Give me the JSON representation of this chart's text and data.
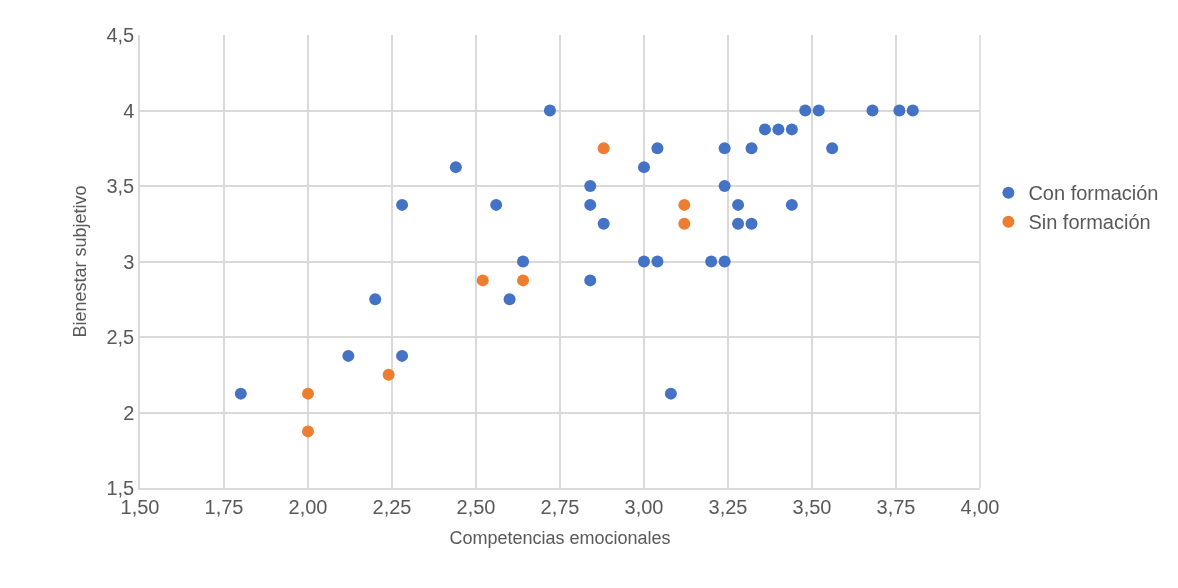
{
  "chart_data": {
    "type": "scatter",
    "xlabel": "Competencias emocionales",
    "ylabel": "Bienestar subjetivo",
    "series": [
      {
        "name": "Con formación",
        "color": "#4472c4",
        "x": [
          1.8,
          2.12,
          2.2,
          2.28,
          2.28,
          2.44,
          2.56,
          2.6,
          2.64,
          2.72,
          2.84,
          2.84,
          2.84,
          2.88,
          3.0,
          3.0,
          3.04,
          3.04,
          3.08,
          3.2,
          3.24,
          3.24,
          3.24,
          3.28,
          3.28,
          3.32,
          3.32,
          3.36,
          3.4,
          3.44,
          3.44,
          3.48,
          3.52,
          3.56,
          3.68,
          3.76,
          3.8
        ],
        "values": [
          2.125,
          2.375,
          2.75,
          2.375,
          3.375,
          3.625,
          3.375,
          2.75,
          3.0,
          4.0,
          2.875,
          3.375,
          3.5,
          3.25,
          3.0,
          3.625,
          3.0,
          3.75,
          2.125,
          3.0,
          3.0,
          3.5,
          3.75,
          3.375,
          3.25,
          3.25,
          3.75,
          3.875,
          3.875,
          3.875,
          3.375,
          4.0,
          4.0,
          3.75,
          4.0,
          4.0,
          4.0
        ]
      },
      {
        "name": "Sin formación",
        "color": "#ed7d31",
        "x": [
          2.0,
          2.0,
          2.24,
          2.52,
          2.64,
          2.88,
          3.12,
          3.12
        ],
        "values": [
          1.875,
          2.125,
          2.25,
          2.875,
          2.875,
          3.75,
          3.375,
          3.25
        ]
      }
    ],
    "xlim": [
      1.5,
      4.0
    ],
    "xticks": [
      {
        "value": 1.5,
        "label": "1,50"
      },
      {
        "value": 1.75,
        "label": "1,75"
      },
      {
        "value": 2.0,
        "label": "2,00"
      },
      {
        "value": 2.25,
        "label": "2,25"
      },
      {
        "value": 2.5,
        "label": "2,50"
      },
      {
        "value": 2.75,
        "label": "2,75"
      },
      {
        "value": 3.0,
        "label": "3,00"
      },
      {
        "value": 3.25,
        "label": "3,25"
      },
      {
        "value": 3.5,
        "label": "3,50"
      },
      {
        "value": 3.75,
        "label": "3,75"
      },
      {
        "value": 4.0,
        "label": "4,00"
      }
    ],
    "ylim": [
      1.5,
      4.5
    ],
    "yticks": [
      {
        "value": 1.5,
        "label": "1,5"
      },
      2,
      {
        "value": 2.5,
        "label": "2,5"
      },
      3,
      {
        "value": 3.5,
        "label": "3,5"
      },
      4,
      {
        "value": 4.5,
        "label": "4,5"
      }
    ],
    "grid": true,
    "legend": "right",
    "marker": "circle"
  }
}
